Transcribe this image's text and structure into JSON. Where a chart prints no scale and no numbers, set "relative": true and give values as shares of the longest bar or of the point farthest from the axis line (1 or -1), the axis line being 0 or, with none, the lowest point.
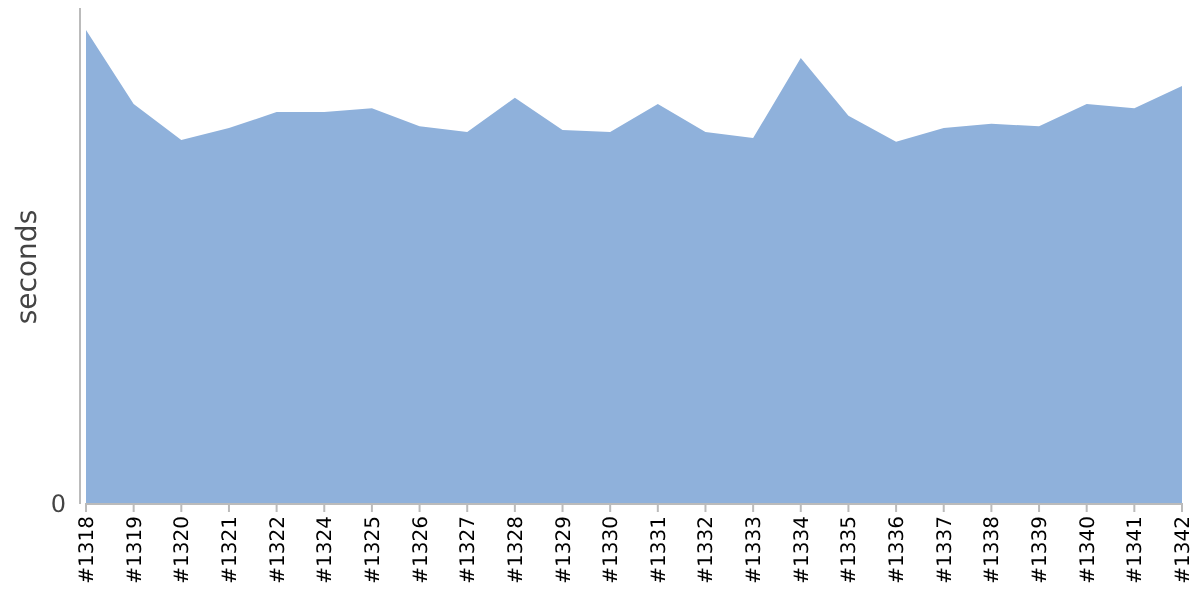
{
  "chart_data": {
    "type": "area",
    "ylabel": "seconds",
    "relative": true,
    "categories": [
      "#1318",
      "#1319",
      "#1320",
      "#1321",
      "#1322",
      "#1324",
      "#1325",
      "#1326",
      "#1327",
      "#1328",
      "#1329",
      "#1330",
      "#1331",
      "#1332",
      "#1333",
      "#1334",
      "#1335",
      "#1336",
      "#1337",
      "#1338",
      "#1339",
      "#1340",
      "#1341",
      "#1342"
    ],
    "series": [
      {
        "color": "#8fb1db",
        "values": [
          1,
          0.844,
          0.768,
          0.793,
          0.827,
          0.827,
          0.835,
          0.797,
          0.785,
          0.857,
          0.789,
          0.785,
          0.844,
          0.785,
          0.772,
          0.941,
          0.819,
          0.764,
          0.793,
          0.802,
          0.797,
          0.844,
          0.835,
          0.882
        ]
      }
    ],
    "annotations": [
      "0"
    ]
  }
}
